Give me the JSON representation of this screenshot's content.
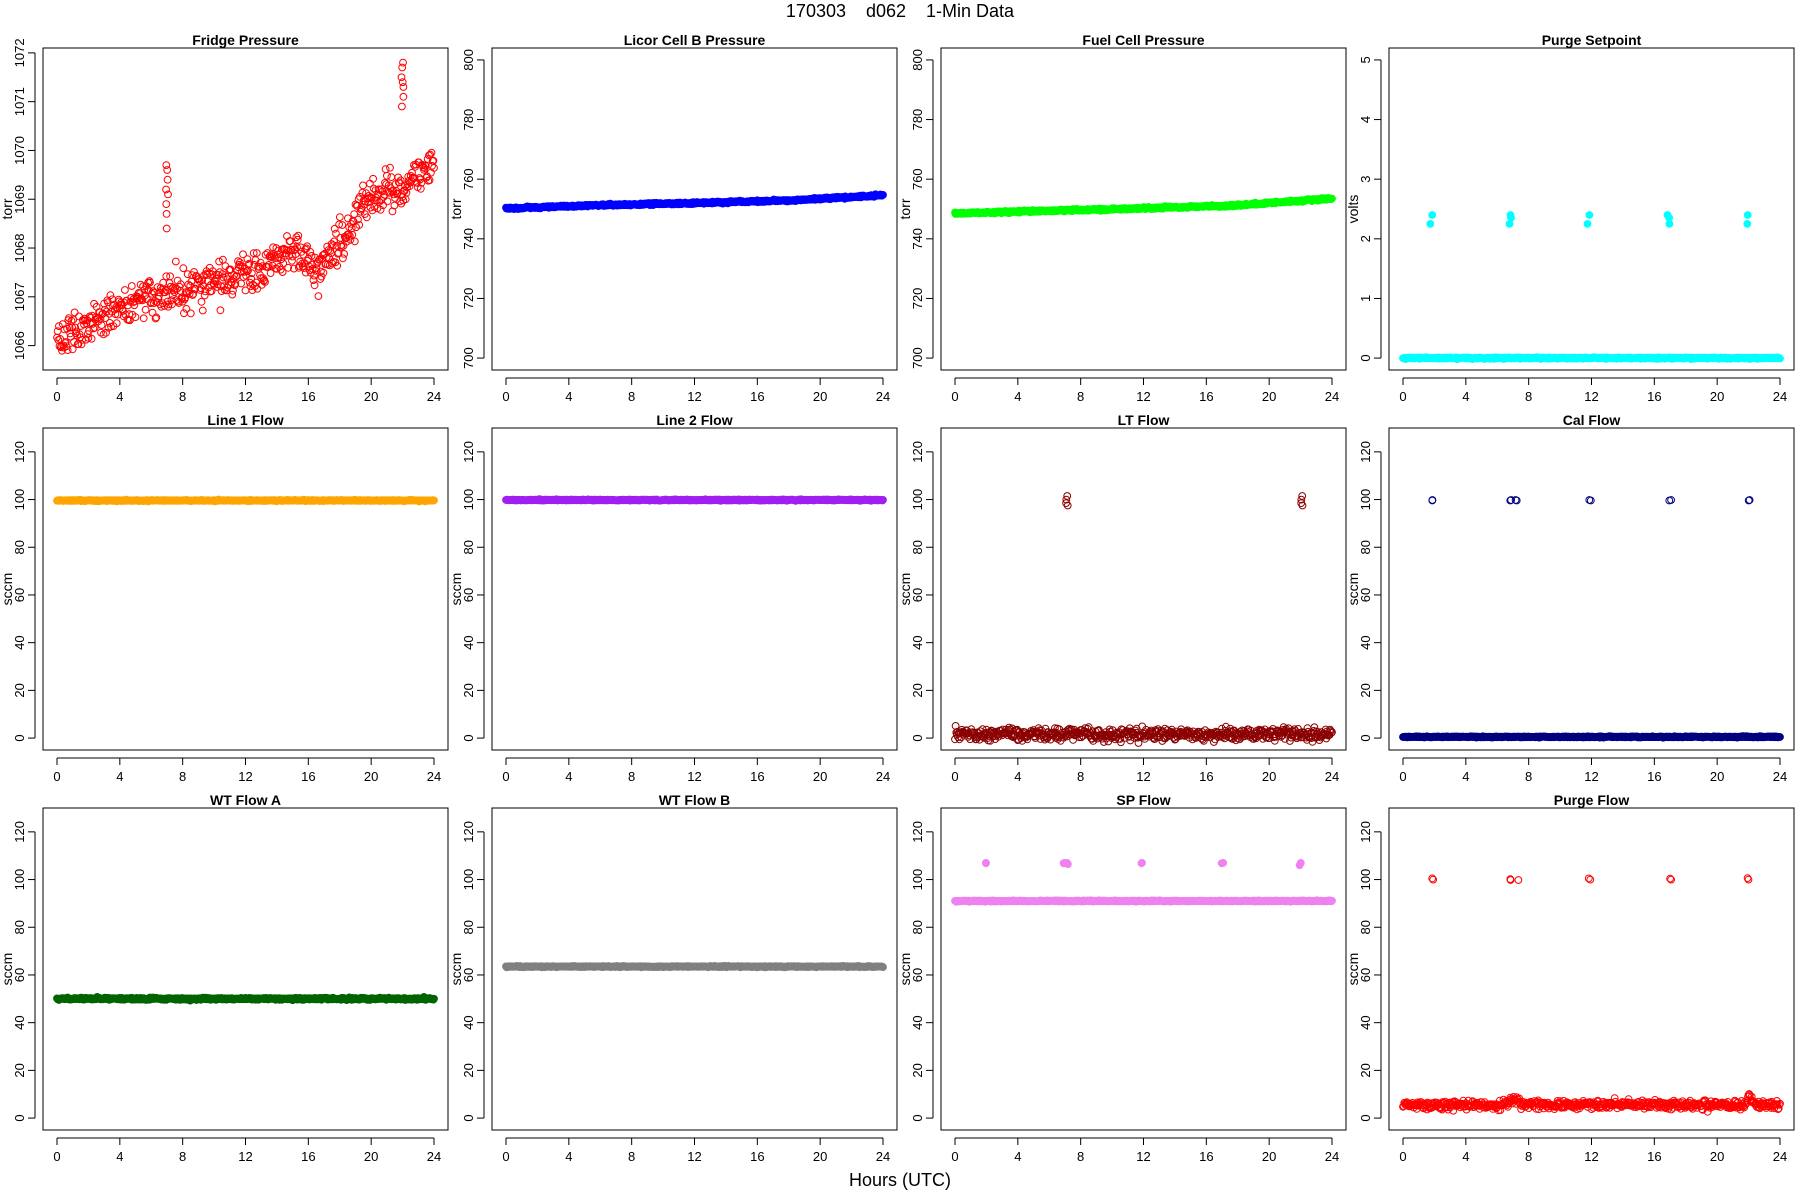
{
  "figure": {
    "title": "170303    d062    1-Min Data",
    "xlabel": "Hours (UTC)"
  },
  "chart_data": [
    {
      "type": "scatter",
      "title": "Fridge Pressure",
      "ylabel": "torr",
      "xlim": [
        0,
        24
      ],
      "ylim": [
        1065.5,
        1072.1
      ],
      "xticks": [
        0,
        4,
        8,
        12,
        16,
        20,
        24
      ],
      "yticks": [
        1066,
        1067,
        1068,
        1069,
        1070,
        1071,
        1072
      ],
      "marker": "open",
      "color": "#ff0000",
      "series": [
        {
          "baseline": [
            [
              0,
              1066.1
            ],
            [
              2,
              1066.4
            ],
            [
              4,
              1066.8
            ],
            [
              6,
              1067.0
            ],
            [
              8,
              1067.1
            ],
            [
              10,
              1067.3
            ],
            [
              12,
              1067.5
            ],
            [
              14,
              1067.7
            ],
            [
              15.5,
              1068.0
            ],
            [
              16.5,
              1067.5
            ],
            [
              17.5,
              1067.9
            ],
            [
              19,
              1068.6
            ],
            [
              20,
              1069.1
            ],
            [
              22,
              1069.2
            ],
            [
              23,
              1069.5
            ],
            [
              24,
              1069.8
            ]
          ],
          "noise": 0.35,
          "spikes": [
            {
              "x": 7.0,
              "values": [
                1068.4,
                1068.7,
                1068.9,
                1069.1,
                1069.2,
                1069.4,
                1069.6,
                1069.7
              ]
            },
            {
              "x": 22.0,
              "values": [
                1070.9,
                1071.1,
                1071.3,
                1071.4,
                1071.5,
                1071.7,
                1071.8
              ]
            }
          ]
        }
      ]
    },
    {
      "type": "scatter",
      "title": "Licor Cell B Pressure",
      "ylabel": "torr",
      "xlim": [
        0,
        24
      ],
      "ylim": [
        696,
        804
      ],
      "xticks": [
        0,
        4,
        8,
        12,
        16,
        20,
        24
      ],
      "yticks": [
        700,
        720,
        740,
        760,
        780,
        800
      ],
      "marker": "filled",
      "color": "#0000ff",
      "series": [
        {
          "baseline": [
            [
              0,
              750.2
            ],
            [
              6,
              751.3
            ],
            [
              12,
              752.0
            ],
            [
              18,
              752.9
            ],
            [
              24,
              754.6
            ]
          ],
          "noise": 0.3,
          "spikes": []
        }
      ]
    },
    {
      "type": "scatter",
      "title": "Fuel Cell Pressure",
      "ylabel": "torr",
      "xlim": [
        0,
        24
      ],
      "ylim": [
        696,
        804
      ],
      "xticks": [
        0,
        4,
        8,
        12,
        16,
        20,
        24
      ],
      "yticks": [
        700,
        720,
        740,
        760,
        780,
        800
      ],
      "marker": "filled",
      "color": "#00ff00",
      "series": [
        {
          "baseline": [
            [
              0,
              748.5
            ],
            [
              6,
              749.4
            ],
            [
              12,
              750.2
            ],
            [
              18,
              751.2
            ],
            [
              24,
              753.6
            ]
          ],
          "noise": 0.3,
          "spikes": []
        }
      ]
    },
    {
      "type": "scatter",
      "title": "Purge Setpoint",
      "ylabel": "volts",
      "xlim": [
        0,
        24
      ],
      "ylim": [
        -0.2,
        5.2
      ],
      "xticks": [
        0,
        4,
        8,
        12,
        16,
        20,
        24
      ],
      "yticks": [
        0,
        1,
        2,
        3,
        4,
        5
      ],
      "marker": "filled",
      "color": "#00ffff",
      "series": [
        {
          "baseline": [
            [
              0,
              0
            ],
            [
              24,
              0
            ]
          ],
          "noise": 0.01,
          "spikes": [
            {
              "x": 1.8,
              "values": [
                2.25,
                2.4
              ]
            },
            {
              "x": 6.8,
              "values": [
                2.25,
                2.35,
                2.4
              ]
            },
            {
              "x": 11.8,
              "values": [
                2.25,
                2.4
              ]
            },
            {
              "x": 16.9,
              "values": [
                2.25,
                2.35,
                2.4
              ]
            },
            {
              "x": 21.9,
              "values": [
                2.25,
                2.4
              ]
            }
          ]
        }
      ]
    },
    {
      "type": "scatter",
      "title": "Line 1 Flow",
      "ylabel": "sccm",
      "xlim": [
        0,
        24
      ],
      "ylim": [
        -5,
        130
      ],
      "xticks": [
        0,
        4,
        8,
        12,
        16,
        20,
        24
      ],
      "yticks": [
        0,
        20,
        40,
        60,
        80,
        100,
        120
      ],
      "marker": "filled",
      "color": "#ffa500",
      "series": [
        {
          "baseline": [
            [
              0,
              99.6
            ],
            [
              24,
              99.6
            ]
          ],
          "noise": 0.2,
          "spikes": []
        }
      ]
    },
    {
      "type": "scatter",
      "title": "Line 2 Flow",
      "ylabel": "sccm",
      "xlim": [
        0,
        24
      ],
      "ylim": [
        -5,
        130
      ],
      "xticks": [
        0,
        4,
        8,
        12,
        16,
        20,
        24
      ],
      "yticks": [
        0,
        20,
        40,
        60,
        80,
        100,
        120
      ],
      "marker": "filled",
      "color": "#a020f0",
      "series": [
        {
          "baseline": [
            [
              0,
              99.8
            ],
            [
              24,
              99.8
            ]
          ],
          "noise": 0.2,
          "spikes": []
        }
      ]
    },
    {
      "type": "scatter",
      "title": "LT Flow",
      "ylabel": "sccm",
      "xlim": [
        0,
        24
      ],
      "ylim": [
        -5,
        130
      ],
      "xticks": [
        0,
        4,
        8,
        12,
        16,
        20,
        24
      ],
      "yticks": [
        0,
        20,
        40,
        60,
        80,
        100,
        120
      ],
      "marker": "open",
      "color": "#8b0000",
      "series": [
        {
          "baseline": [
            [
              0,
              1.5
            ],
            [
              24,
              1.5
            ]
          ],
          "noise": 2.2,
          "spikes": [
            {
              "x": 7.1,
              "values": [
                97.5,
                98.5,
                100,
                101.5
              ]
            },
            {
              "x": 22.1,
              "values": [
                97.5,
                98.5,
                100,
                101.5
              ]
            }
          ]
        }
      ]
    },
    {
      "type": "scatter",
      "title": "Cal Flow",
      "ylabel": "sccm",
      "xlim": [
        0,
        24
      ],
      "ylim": [
        -5,
        130
      ],
      "xticks": [
        0,
        4,
        8,
        12,
        16,
        20,
        24
      ],
      "yticks": [
        0,
        20,
        40,
        60,
        80,
        100,
        120
      ],
      "marker": "open",
      "color": "#000080",
      "series": [
        {
          "baseline": [
            [
              0,
              0.5
            ],
            [
              24,
              0.5
            ]
          ],
          "noise": 0.2,
          "spikes": [
            {
              "x": 1.9,
              "values": [
                99.6,
                99.8
              ]
            },
            {
              "x": 6.9,
              "values": [
                99.6,
                99.8
              ]
            },
            {
              "x": 7.2,
              "values": [
                99.6,
                99.8
              ]
            },
            {
              "x": 11.9,
              "values": [
                99.6,
                99.8
              ]
            },
            {
              "x": 17.0,
              "values": [
                99.6,
                99.8
              ]
            },
            {
              "x": 22.0,
              "values": [
                99.6,
                99.8
              ]
            }
          ]
        }
      ]
    },
    {
      "type": "scatter",
      "title": "WT Flow A",
      "ylabel": "sccm",
      "xlim": [
        0,
        24
      ],
      "ylim": [
        -5,
        130
      ],
      "xticks": [
        0,
        4,
        8,
        12,
        16,
        20,
        24
      ],
      "yticks": [
        0,
        20,
        40,
        60,
        80,
        100,
        120
      ],
      "marker": "filled",
      "color": "#006400",
      "series": [
        {
          "baseline": [
            [
              0,
              50
            ],
            [
              24,
              50
            ]
          ],
          "noise": 0.4,
          "spikes": []
        }
      ]
    },
    {
      "type": "scatter",
      "title": "WT Flow B",
      "ylabel": "sccm",
      "xlim": [
        0,
        24
      ],
      "ylim": [
        -5,
        130
      ],
      "xticks": [
        0,
        4,
        8,
        12,
        16,
        20,
        24
      ],
      "yticks": [
        0,
        20,
        40,
        60,
        80,
        100,
        120
      ],
      "marker": "filled",
      "color": "#808080",
      "series": [
        {
          "baseline": [
            [
              0,
              63.5
            ],
            [
              24,
              63.5
            ]
          ],
          "noise": 0.2,
          "spikes": []
        }
      ]
    },
    {
      "type": "scatter",
      "title": "SP Flow",
      "ylabel": "sccm",
      "xlim": [
        0,
        24
      ],
      "ylim": [
        -5,
        130
      ],
      "xticks": [
        0,
        4,
        8,
        12,
        16,
        20,
        24
      ],
      "yticks": [
        0,
        20,
        40,
        60,
        80,
        100,
        120
      ],
      "marker": "filled",
      "color": "#ee82ee",
      "series": [
        {
          "baseline": [
            [
              0,
              91
            ],
            [
              24,
              91
            ]
          ],
          "noise": 0.2,
          "spikes": [
            {
              "x": 1.9,
              "values": [
                106.8,
                107
              ]
            },
            {
              "x": 6.9,
              "values": [
                106.8,
                107
              ]
            },
            {
              "x": 7.2,
              "values": [
                106.5,
                107
              ]
            },
            {
              "x": 11.9,
              "values": [
                106.8,
                107
              ]
            },
            {
              "x": 17.0,
              "values": [
                106.8,
                107
              ]
            },
            {
              "x": 22.0,
              "values": [
                106,
                107
              ]
            }
          ]
        }
      ]
    },
    {
      "type": "scatter",
      "title": "Purge Flow",
      "ylabel": "sccm",
      "xlim": [
        0,
        24
      ],
      "ylim": [
        -5,
        130
      ],
      "xticks": [
        0,
        4,
        8,
        12,
        16,
        20,
        24
      ],
      "yticks": [
        0,
        20,
        40,
        60,
        80,
        100,
        120
      ],
      "marker": "open",
      "color": "#ff0000",
      "series": [
        {
          "baseline": [
            [
              0,
              5.5
            ],
            [
              6.5,
              5.5
            ],
            [
              7.0,
              8
            ],
            [
              7.5,
              5.5
            ],
            [
              21.8,
              5.5
            ],
            [
              22.0,
              9
            ],
            [
              22.4,
              5.5
            ],
            [
              24,
              5.5
            ]
          ],
          "noise": 1.5,
          "spikes": [
            {
              "x": 1.9,
              "values": [
                100,
                100.5
              ]
            },
            {
              "x": 6.9,
              "values": [
                99.8,
                100.2
              ]
            },
            {
              "x": 7.3,
              "values": [
                99.8
              ]
            },
            {
              "x": 11.9,
              "values": [
                100,
                100.5
              ]
            },
            {
              "x": 17.0,
              "values": [
                100,
                100.4
              ]
            },
            {
              "x": 22.0,
              "values": [
                100,
                100.6
              ]
            }
          ]
        }
      ]
    }
  ]
}
